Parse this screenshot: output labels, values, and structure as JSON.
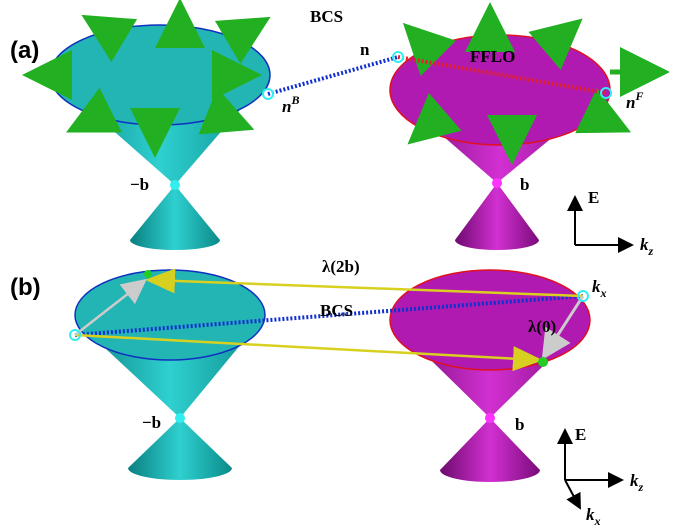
{
  "panel_a": {
    "label": "(a)",
    "bcs": "BCS",
    "n": "n",
    "fflo": "FFLO",
    "n_b": {
      "base": "n",
      "sup": "B"
    },
    "n_f": {
      "base": "n",
      "sup": "F"
    },
    "minus_b": "−b",
    "b": "b",
    "axes": {
      "e": "E",
      "kz": {
        "base": "k",
        "sub": "z"
      }
    }
  },
  "panel_b": {
    "label": "(b)",
    "lambda_2b": "λ(2b)",
    "kx_point": {
      "base": "k",
      "sub": "x"
    },
    "bcs": "BCS",
    "lambda_0": "λ(0)",
    "minus_b": "−b",
    "b": "b",
    "axes": {
      "e": "E",
      "kz": {
        "base": "k",
        "sub": "z"
      },
      "kx": {
        "base": "k",
        "sub": "x"
      }
    }
  }
}
